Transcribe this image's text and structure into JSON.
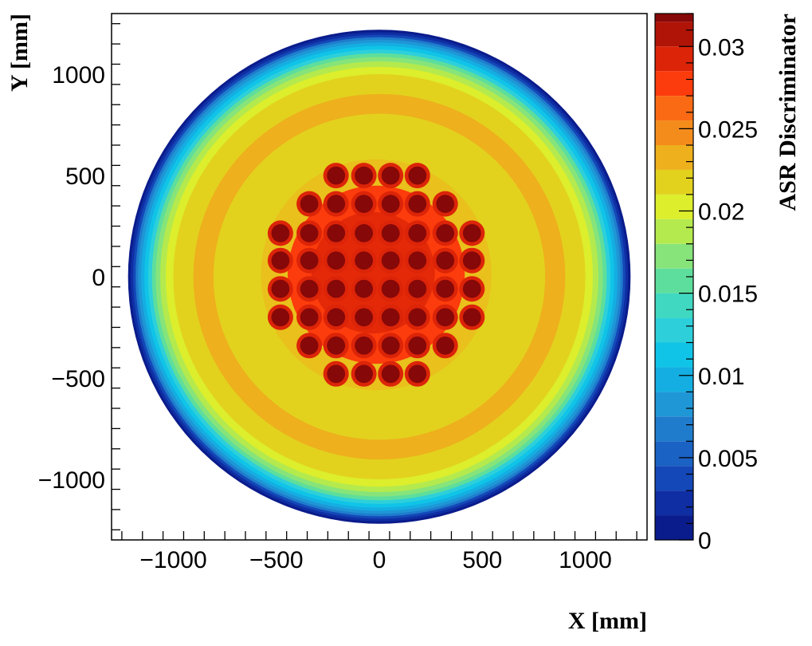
{
  "chart_data": {
    "type": "heatmap",
    "xlabel": "X [mm]",
    "ylabel": "Y [mm]",
    "zlabel": "ASR Discriminator",
    "xlim": [
      -1300,
      1300
    ],
    "ylim": [
      -1300,
      1300
    ],
    "zlim": [
      0,
      0.032
    ],
    "x_ticks": [
      -1000,
      -500,
      0,
      500,
      1000
    ],
    "y_ticks": [
      -1000,
      -500,
      0,
      500,
      1000
    ],
    "x_tick_labels": [
      "−1000",
      "−500",
      "0",
      "500",
      "1000"
    ],
    "y_tick_labels": [
      "−1000",
      "−500",
      "0",
      "500",
      "1000"
    ],
    "z_ticks": [
      0,
      0.005,
      0.01,
      0.015,
      0.02,
      0.025,
      0.03
    ],
    "z_tick_labels": [
      "0",
      "0.005",
      "0.01",
      "0.015",
      "0.02",
      "0.025",
      "0.03"
    ],
    "grid": false,
    "detector_radius": 1220,
    "levels": [
      {
        "value": 0.0,
        "color": "#0a1c8c"
      },
      {
        "value": 0.0015,
        "color": "#0f2ea3"
      },
      {
        "value": 0.003,
        "color": "#1448b8"
      },
      {
        "value": 0.0045,
        "color": "#1a62c4"
      },
      {
        "value": 0.006,
        "color": "#1f7ccc"
      },
      {
        "value": 0.0075,
        "color": "#1f96d6"
      },
      {
        "value": 0.009,
        "color": "#14aee2"
      },
      {
        "value": 0.0105,
        "color": "#10c4e8"
      },
      {
        "value": 0.012,
        "color": "#2dd0da"
      },
      {
        "value": 0.0135,
        "color": "#40d8c0"
      },
      {
        "value": 0.015,
        "color": "#5ede9c"
      },
      {
        "value": 0.0165,
        "color": "#86e47a"
      },
      {
        "value": 0.018,
        "color": "#b4ea4e"
      },
      {
        "value": 0.0195,
        "color": "#dcee2c"
      },
      {
        "value": 0.021,
        "color": "#e2d21e"
      },
      {
        "value": 0.0225,
        "color": "#eeb01c"
      },
      {
        "value": 0.024,
        "color": "#f48c1c"
      },
      {
        "value": 0.0255,
        "color": "#fa6a14"
      },
      {
        "value": 0.027,
        "color": "#fc3c0c"
      },
      {
        "value": 0.0285,
        "color": "#dc2408"
      },
      {
        "value": 0.03,
        "color": "#b01406"
      },
      {
        "value": 0.0315,
        "color": "#860808"
      }
    ],
    "hot_spots": [
      {
        "x": -75,
        "y": 500
      },
      {
        "x": 55,
        "y": 500
      },
      {
        "x": 185,
        "y": 500
      },
      {
        "x": -210,
        "y": 500
      },
      {
        "x": -340,
        "y": 360
      },
      {
        "x": -210,
        "y": 360
      },
      {
        "x": -75,
        "y": 360
      },
      {
        "x": 55,
        "y": 360
      },
      {
        "x": 185,
        "y": 360
      },
      {
        "x": 320,
        "y": 360
      },
      {
        "x": -480,
        "y": 215
      },
      {
        "x": -340,
        "y": 215
      },
      {
        "x": -210,
        "y": 215
      },
      {
        "x": -75,
        "y": 215
      },
      {
        "x": 55,
        "y": 215
      },
      {
        "x": 185,
        "y": 215
      },
      {
        "x": 320,
        "y": 215
      },
      {
        "x": 450,
        "y": 215
      },
      {
        "x": -480,
        "y": 80
      },
      {
        "x": -340,
        "y": 80
      },
      {
        "x": -210,
        "y": 80
      },
      {
        "x": -75,
        "y": 80
      },
      {
        "x": 55,
        "y": 80
      },
      {
        "x": 185,
        "y": 80
      },
      {
        "x": 320,
        "y": 80
      },
      {
        "x": 450,
        "y": 80
      },
      {
        "x": -480,
        "y": -60
      },
      {
        "x": -340,
        "y": -60
      },
      {
        "x": -210,
        "y": -60
      },
      {
        "x": -75,
        "y": -60
      },
      {
        "x": 55,
        "y": -60
      },
      {
        "x": 185,
        "y": -60
      },
      {
        "x": 320,
        "y": -60
      },
      {
        "x": 450,
        "y": -60
      },
      {
        "x": -480,
        "y": -200
      },
      {
        "x": -340,
        "y": -200
      },
      {
        "x": -210,
        "y": -200
      },
      {
        "x": -75,
        "y": -200
      },
      {
        "x": 55,
        "y": -200
      },
      {
        "x": 185,
        "y": -200
      },
      {
        "x": 320,
        "y": -200
      },
      {
        "x": 450,
        "y": -200
      },
      {
        "x": -340,
        "y": -340
      },
      {
        "x": -210,
        "y": -340
      },
      {
        "x": -75,
        "y": -340
      },
      {
        "x": 55,
        "y": -340
      },
      {
        "x": 185,
        "y": -340
      },
      {
        "x": 320,
        "y": -340
      },
      {
        "x": -210,
        "y": -480
      },
      {
        "x": -75,
        "y": -480
      },
      {
        "x": 55,
        "y": -480
      },
      {
        "x": 185,
        "y": -480
      }
    ]
  }
}
